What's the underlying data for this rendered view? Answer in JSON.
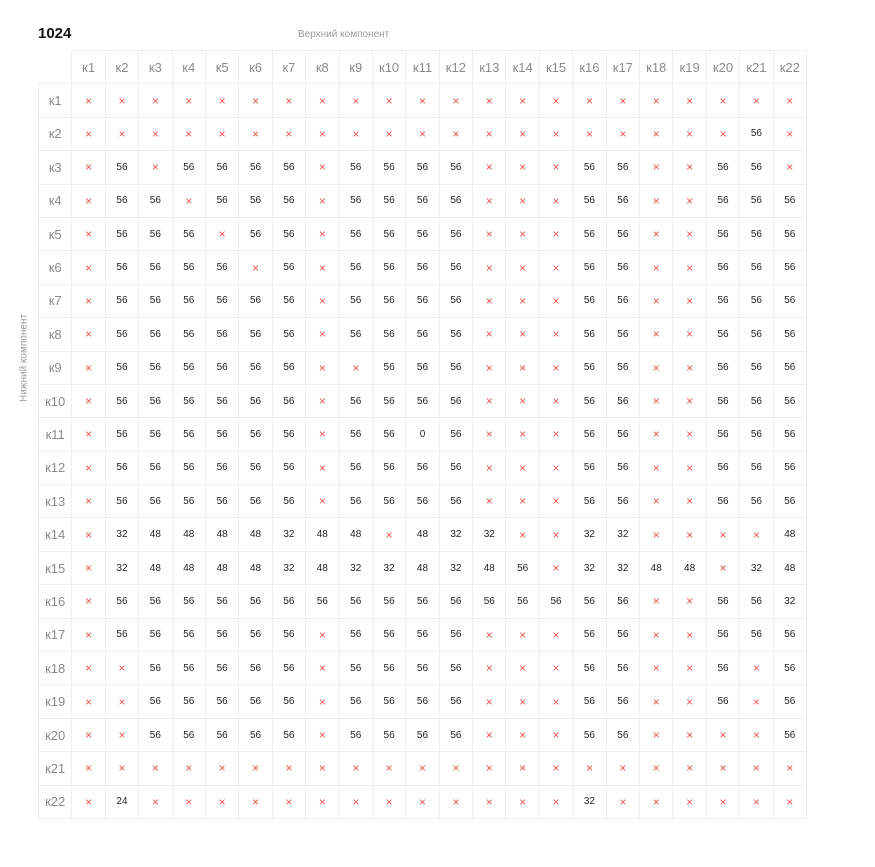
{
  "title": "1024",
  "top_axis_label": "Верхний компонент",
  "side_axis_label": "Нижний компонент",
  "x_mark": "×",
  "colors": {
    "x_mark": "#e8534d",
    "grid_line": "#efefef",
    "header_text": "#8a8a8a"
  },
  "columns": [
    "к1",
    "к2",
    "к3",
    "к4",
    "к5",
    "к6",
    "к7",
    "к8",
    "к9",
    "к10",
    "к11",
    "к12",
    "к13",
    "к14",
    "к15",
    "к16",
    "к17",
    "к18",
    "к19",
    "к20",
    "к21",
    "к22"
  ],
  "rows": [
    {
      "label": "к1",
      "cells": [
        "x",
        "x",
        "x",
        "x",
        "x",
        "x",
        "x",
        "x",
        "x",
        "x",
        "x",
        "x",
        "x",
        "x",
        "x",
        "x",
        "x",
        "x",
        "x",
        "x",
        "x",
        "x"
      ]
    },
    {
      "label": "к2",
      "cells": [
        "x",
        "x",
        "x",
        "x",
        "x",
        "x",
        "x",
        "x",
        "x",
        "x",
        "x",
        "x",
        "x",
        "x",
        "x",
        "x",
        "x",
        "x",
        "x",
        "x",
        "56",
        "x"
      ]
    },
    {
      "label": "к3",
      "cells": [
        "x",
        "56",
        "x",
        "56",
        "56",
        "56",
        "56",
        "x",
        "56",
        "56",
        "56",
        "56",
        "x",
        "x",
        "x",
        "56",
        "56",
        "x",
        "x",
        "56",
        "56",
        "x"
      ]
    },
    {
      "label": "к4",
      "cells": [
        "x",
        "56",
        "56",
        "x",
        "56",
        "56",
        "56",
        "x",
        "56",
        "56",
        "56",
        "56",
        "x",
        "x",
        "x",
        "56",
        "56",
        "x",
        "x",
        "56",
        "56",
        "56"
      ]
    },
    {
      "label": "к5",
      "cells": [
        "x",
        "56",
        "56",
        "56",
        "x",
        "56",
        "56",
        "x",
        "56",
        "56",
        "56",
        "56",
        "x",
        "x",
        "x",
        "56",
        "56",
        "x",
        "x",
        "56",
        "56",
        "56"
      ]
    },
    {
      "label": "к6",
      "cells": [
        "x",
        "56",
        "56",
        "56",
        "56",
        "x",
        "56",
        "x",
        "56",
        "56",
        "56",
        "56",
        "x",
        "x",
        "x",
        "56",
        "56",
        "x",
        "x",
        "56",
        "56",
        "56"
      ]
    },
    {
      "label": "к7",
      "cells": [
        "x",
        "56",
        "56",
        "56",
        "56",
        "56",
        "56",
        "x",
        "56",
        "56",
        "56",
        "56",
        "x",
        "x",
        "x",
        "56",
        "56",
        "x",
        "x",
        "56",
        "56",
        "56"
      ]
    },
    {
      "label": "к8",
      "cells": [
        "x",
        "56",
        "56",
        "56",
        "56",
        "56",
        "56",
        "x",
        "56",
        "56",
        "56",
        "56",
        "x",
        "x",
        "x",
        "56",
        "56",
        "x",
        "x",
        "56",
        "56",
        "56"
      ]
    },
    {
      "label": "к9",
      "cells": [
        "x",
        "56",
        "56",
        "56",
        "56",
        "56",
        "56",
        "x",
        "x",
        "56",
        "56",
        "56",
        "x",
        "x",
        "x",
        "56",
        "56",
        "x",
        "x",
        "56",
        "56",
        "56"
      ]
    },
    {
      "label": "к10",
      "cells": [
        "x",
        "56",
        "56",
        "56",
        "56",
        "56",
        "56",
        "x",
        "56",
        "56",
        "56",
        "56",
        "x",
        "x",
        "x",
        "56",
        "56",
        "x",
        "x",
        "56",
        "56",
        "56"
      ]
    },
    {
      "label": "к11",
      "cells": [
        "x",
        "56",
        "56",
        "56",
        "56",
        "56",
        "56",
        "x",
        "56",
        "56",
        "0",
        "56",
        "x",
        "x",
        "x",
        "56",
        "56",
        "x",
        "x",
        "56",
        "56",
        "56"
      ]
    },
    {
      "label": "к12",
      "cells": [
        "x",
        "56",
        "56",
        "56",
        "56",
        "56",
        "56",
        "x",
        "56",
        "56",
        "56",
        "56",
        "x",
        "x",
        "x",
        "56",
        "56",
        "x",
        "x",
        "56",
        "56",
        "56"
      ]
    },
    {
      "label": "к13",
      "cells": [
        "x",
        "56",
        "56",
        "56",
        "56",
        "56",
        "56",
        "x",
        "56",
        "56",
        "56",
        "56",
        "x",
        "x",
        "x",
        "56",
        "56",
        "x",
        "x",
        "56",
        "56",
        "56"
      ]
    },
    {
      "label": "к14",
      "cells": [
        "x",
        "32",
        "48",
        "48",
        "48",
        "48",
        "32",
        "48",
        "48",
        "x",
        "48",
        "32",
        "32",
        "x",
        "x",
        "32",
        "32",
        "x",
        "x",
        "x",
        "x",
        "48"
      ]
    },
    {
      "label": "к15",
      "cells": [
        "x",
        "32",
        "48",
        "48",
        "48",
        "48",
        "32",
        "48",
        "32",
        "32",
        "48",
        "32",
        "48",
        "56",
        "x",
        "32",
        "32",
        "48",
        "48",
        "x",
        "32",
        "48"
      ]
    },
    {
      "label": "к16",
      "cells": [
        "x",
        "56",
        "56",
        "56",
        "56",
        "56",
        "56",
        "56",
        "56",
        "56",
        "56",
        "56",
        "56",
        "56",
        "56",
        "56",
        "56",
        "x",
        "x",
        "56",
        "56",
        "32"
      ]
    },
    {
      "label": "к17",
      "cells": [
        "x",
        "56",
        "56",
        "56",
        "56",
        "56",
        "56",
        "x",
        "56",
        "56",
        "56",
        "56",
        "x",
        "x",
        "x",
        "56",
        "56",
        "x",
        "x",
        "56",
        "56",
        "56"
      ]
    },
    {
      "label": "к18",
      "cells": [
        "x",
        "x",
        "56",
        "56",
        "56",
        "56",
        "56",
        "x",
        "56",
        "56",
        "56",
        "56",
        "x",
        "x",
        "x",
        "56",
        "56",
        "x",
        "x",
        "56",
        "x",
        "56"
      ]
    },
    {
      "label": "к19",
      "cells": [
        "x",
        "x",
        "56",
        "56",
        "56",
        "56",
        "56",
        "x",
        "56",
        "56",
        "56",
        "56",
        "x",
        "x",
        "x",
        "56",
        "56",
        "x",
        "x",
        "56",
        "x",
        "56"
      ]
    },
    {
      "label": "к20",
      "cells": [
        "x",
        "x",
        "56",
        "56",
        "56",
        "56",
        "56",
        "x",
        "56",
        "56",
        "56",
        "56",
        "x",
        "x",
        "x",
        "56",
        "56",
        "x",
        "x",
        "x",
        "x",
        "56"
      ]
    },
    {
      "label": "к21",
      "cells": [
        "x",
        "x",
        "x",
        "x",
        "x",
        "x",
        "x",
        "x",
        "x",
        "x",
        "x",
        "x",
        "x",
        "x",
        "x",
        "x",
        "x",
        "x",
        "x",
        "x",
        "x",
        "x"
      ]
    },
    {
      "label": "к22",
      "cells": [
        "x",
        "24",
        "x",
        "x",
        "x",
        "x",
        "x",
        "x",
        "x",
        "x",
        "x",
        "x",
        "x",
        "x",
        "x",
        "32",
        "x",
        "x",
        "x",
        "x",
        "x",
        "x"
      ]
    }
  ]
}
